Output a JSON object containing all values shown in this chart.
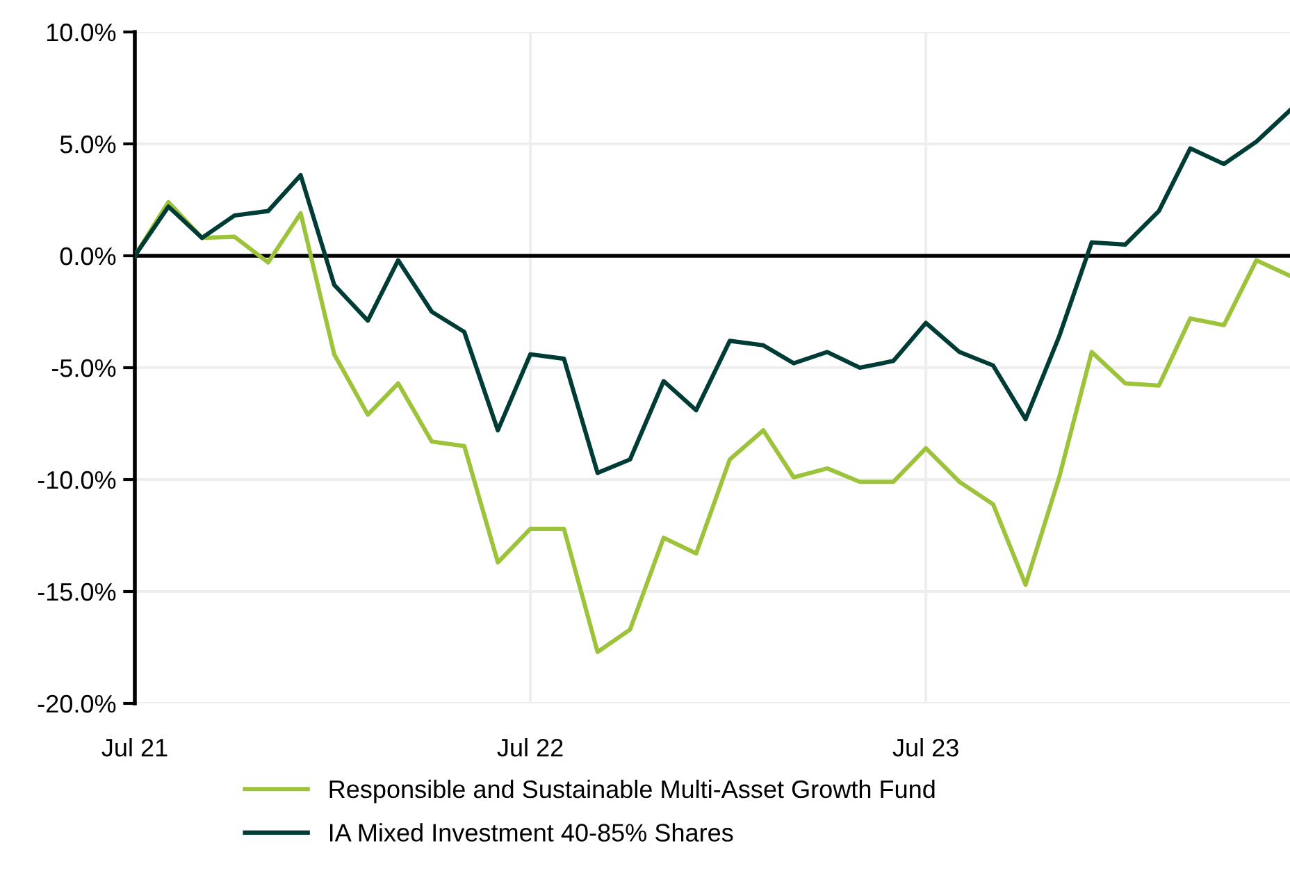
{
  "chart_data": {
    "type": "line",
    "x": [
      "2021-07",
      "2021-08",
      "2021-09",
      "2021-10",
      "2021-11",
      "2021-12",
      "2022-01",
      "2022-02",
      "2022-03",
      "2022-04",
      "2022-05",
      "2022-06",
      "2022-07",
      "2022-08",
      "2022-09",
      "2022-10",
      "2022-11",
      "2022-12",
      "2023-01",
      "2023-02",
      "2023-03",
      "2023-04",
      "2023-05",
      "2023-06",
      "2023-07",
      "2023-08",
      "2023-09",
      "2023-10",
      "2023-11",
      "2023-12",
      "2024-01",
      "2024-02",
      "2024-03",
      "2024-04",
      "2024-05",
      "2024-06"
    ],
    "series": [
      {
        "name": "Responsible and Sustainable Multi-Asset Growth Fund",
        "color": "#9dc33b",
        "values": [
          0,
          2.4,
          0.8,
          0.85,
          -0.3,
          1.9,
          -4.4,
          -7.1,
          -5.7,
          -8.3,
          -8.5,
          -13.7,
          -12.2,
          -12.2,
          -17.7,
          -16.7,
          -12.6,
          -13.3,
          -9.1,
          -7.8,
          -9.9,
          -9.5,
          -10.1,
          -10.1,
          -8.6,
          -10.1,
          -11.1,
          -14.7,
          -9.9,
          -4.3,
          -5.7,
          -5.8,
          -2.8,
          -3.1,
          -0.2,
          -0.9
        ]
      },
      {
        "name": "IA Mixed Investment 40-85% Shares",
        "color": "#003c36",
        "values": [
          0,
          2.2,
          0.8,
          1.8,
          2.0,
          3.6,
          -1.3,
          -2.9,
          -0.2,
          -2.5,
          -3.4,
          -7.8,
          -4.4,
          -4.6,
          -9.7,
          -9.1,
          -5.6,
          -6.9,
          -3.8,
          -4.0,
          -4.8,
          -4.3,
          -5.0,
          -4.7,
          -3.0,
          -4.3,
          -4.9,
          -7.3,
          -3.6,
          0.6,
          0.5,
          2.0,
          4.8,
          4.1,
          5.1,
          6.5
        ]
      }
    ],
    "xlim": [
      "2021-07",
      "2024-06"
    ],
    "xticks": [
      {
        "value": "2021-07",
        "label": "Jul 21"
      },
      {
        "value": "2022-07",
        "label": "Jul 22"
      },
      {
        "value": "2023-07",
        "label": "Jul 23"
      }
    ],
    "ylim": [
      -20,
      10
    ],
    "yticks": [
      {
        "value": -20,
        "label": "-20.0%"
      },
      {
        "value": -15,
        "label": "-15.0%"
      },
      {
        "value": -10,
        "label": "-10.0%"
      },
      {
        "value": -5,
        "label": "-5.0%"
      },
      {
        "value": 0,
        "label": "0.0%"
      },
      {
        "value": 5,
        "label": "5.0%"
      },
      {
        "value": 10,
        "label": "10.0%"
      }
    ],
    "ref_lines": [
      {
        "axis": "y",
        "value": 0,
        "label": null,
        "color": "#000000"
      }
    ],
    "grid": true,
    "legend": "bottom",
    "marker": "none",
    "line_style": "solid"
  }
}
